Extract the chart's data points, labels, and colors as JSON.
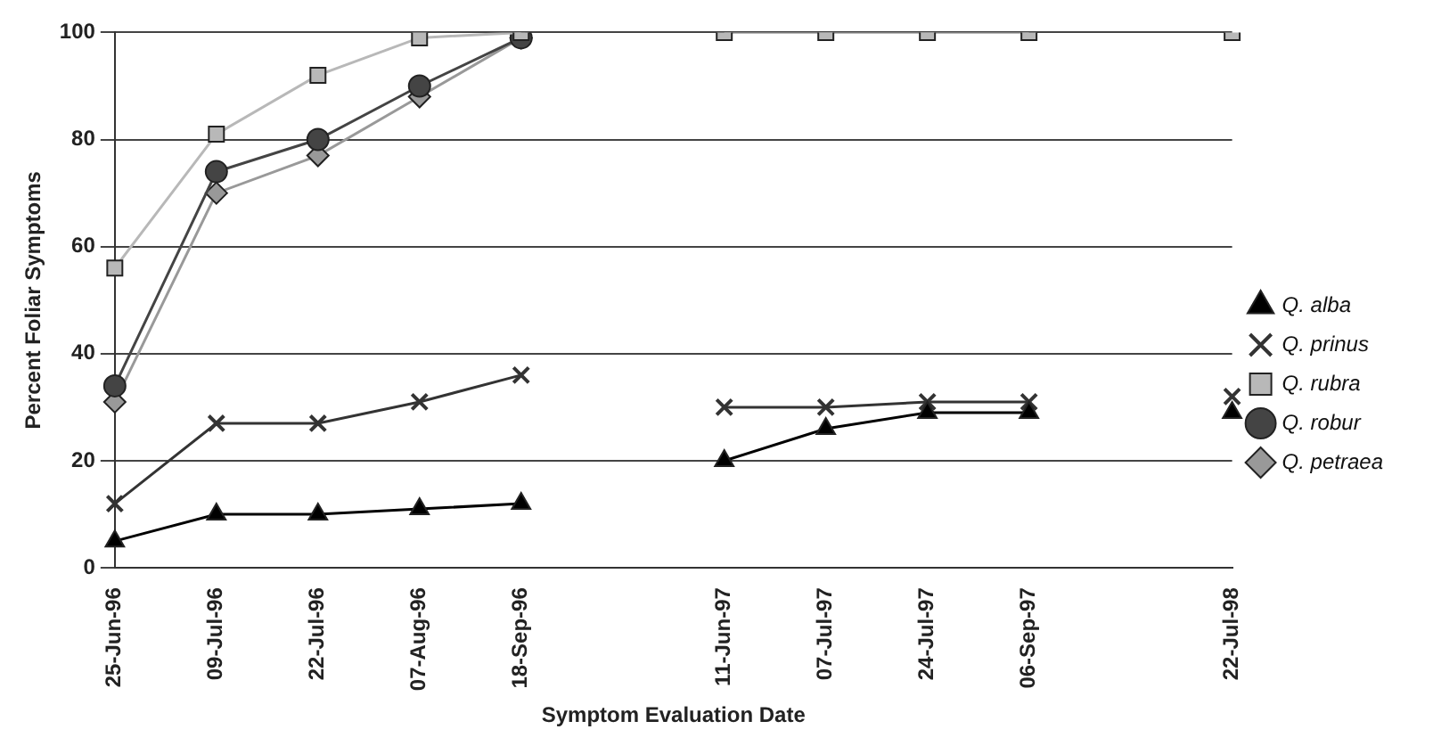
{
  "chart_data": {
    "type": "line",
    "xlabel": "Symptom Evaluation Date",
    "ylabel": "Percent Foliar Symptoms",
    "categories": [
      "25-Jun-96",
      "09-Jul-96",
      "22-Jul-96",
      "07-Aug-96",
      "18-Sep-96",
      null,
      "11-Jun-97",
      "07-Jul-97",
      "24-Jul-97",
      "06-Sep-97",
      null,
      "22-Jul-98"
    ],
    "series": [
      {
        "name": "Q. alba",
        "color": "#000000",
        "marker": "triangle",
        "values": [
          5,
          10,
          10,
          11,
          12,
          null,
          20,
          26,
          29,
          29,
          null,
          29
        ]
      },
      {
        "name": "Q. prinus",
        "color": "#333333",
        "marker": "cross",
        "values": [
          12,
          27,
          27,
          31,
          36,
          null,
          30,
          30,
          31,
          31,
          null,
          32
        ]
      },
      {
        "name": "Q. rubra",
        "color": "#b8b8b8",
        "marker": "square",
        "values": [
          56,
          81,
          92,
          99,
          100,
          null,
          100,
          100,
          100,
          100,
          null,
          100
        ]
      },
      {
        "name": "Q. robur",
        "color": "#444444",
        "marker": "circle",
        "values": [
          34,
          74,
          80,
          90,
          99,
          null,
          null,
          null,
          null,
          null,
          null,
          null
        ]
      },
      {
        "name": "Q. petraea",
        "color": "#999999",
        "marker": "diamond",
        "values": [
          31,
          70,
          77,
          88,
          99,
          null,
          null,
          null,
          null,
          null,
          null,
          null
        ]
      }
    ],
    "ylim": [
      0,
      100
    ],
    "yticks": [
      0,
      20,
      40,
      60,
      80,
      100
    ],
    "grid": "y",
    "legend": "right"
  }
}
